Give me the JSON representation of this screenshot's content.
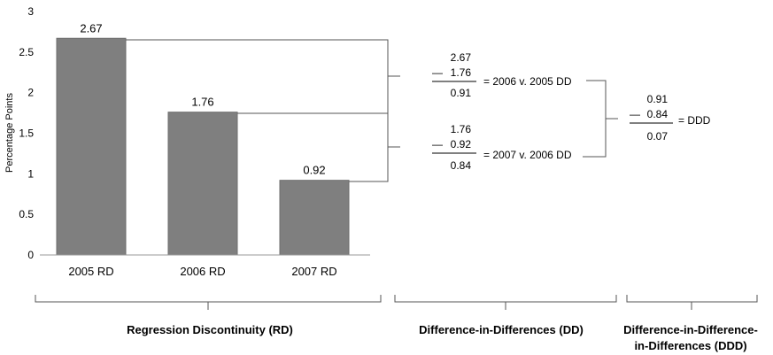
{
  "chart_data": {
    "type": "bar",
    "categories": [
      "2005 RD",
      "2006 RD",
      "2007 RD"
    ],
    "values": [
      2.67,
      1.76,
      0.92
    ],
    "data_labels": [
      "2.67",
      "1.76",
      "0.92"
    ],
    "ylabel": "Percentage Points",
    "ylim": [
      0,
      3
    ],
    "yticks": [
      "0",
      "0.5",
      "1",
      "1.5",
      "2",
      "2.5",
      "3"
    ],
    "grid": false,
    "bar_color": "#7f7f7f"
  },
  "calculations": {
    "dd1": {
      "minuend": "2.67",
      "minus_sign": "—",
      "subtrahend": "1.76",
      "result": "0.91",
      "label": "= 2006 v. 2005 DD"
    },
    "dd2": {
      "minuend": "1.76",
      "minus_sign": "—",
      "subtrahend": "0.92",
      "result": "0.84",
      "label": "= 2007 v. 2006 DD"
    },
    "ddd": {
      "minuend": "0.91",
      "minus_sign": "—",
      "subtrahend": "0.84",
      "result": "0.07",
      "label": "= DDD"
    }
  },
  "groups": {
    "rd": "Regression Discontinuity (RD)",
    "dd": "Difference-in-Differences (DD)",
    "ddd_line1": "Difference-in-Difference-",
    "ddd_line2": "in-Differences (DDD)"
  }
}
